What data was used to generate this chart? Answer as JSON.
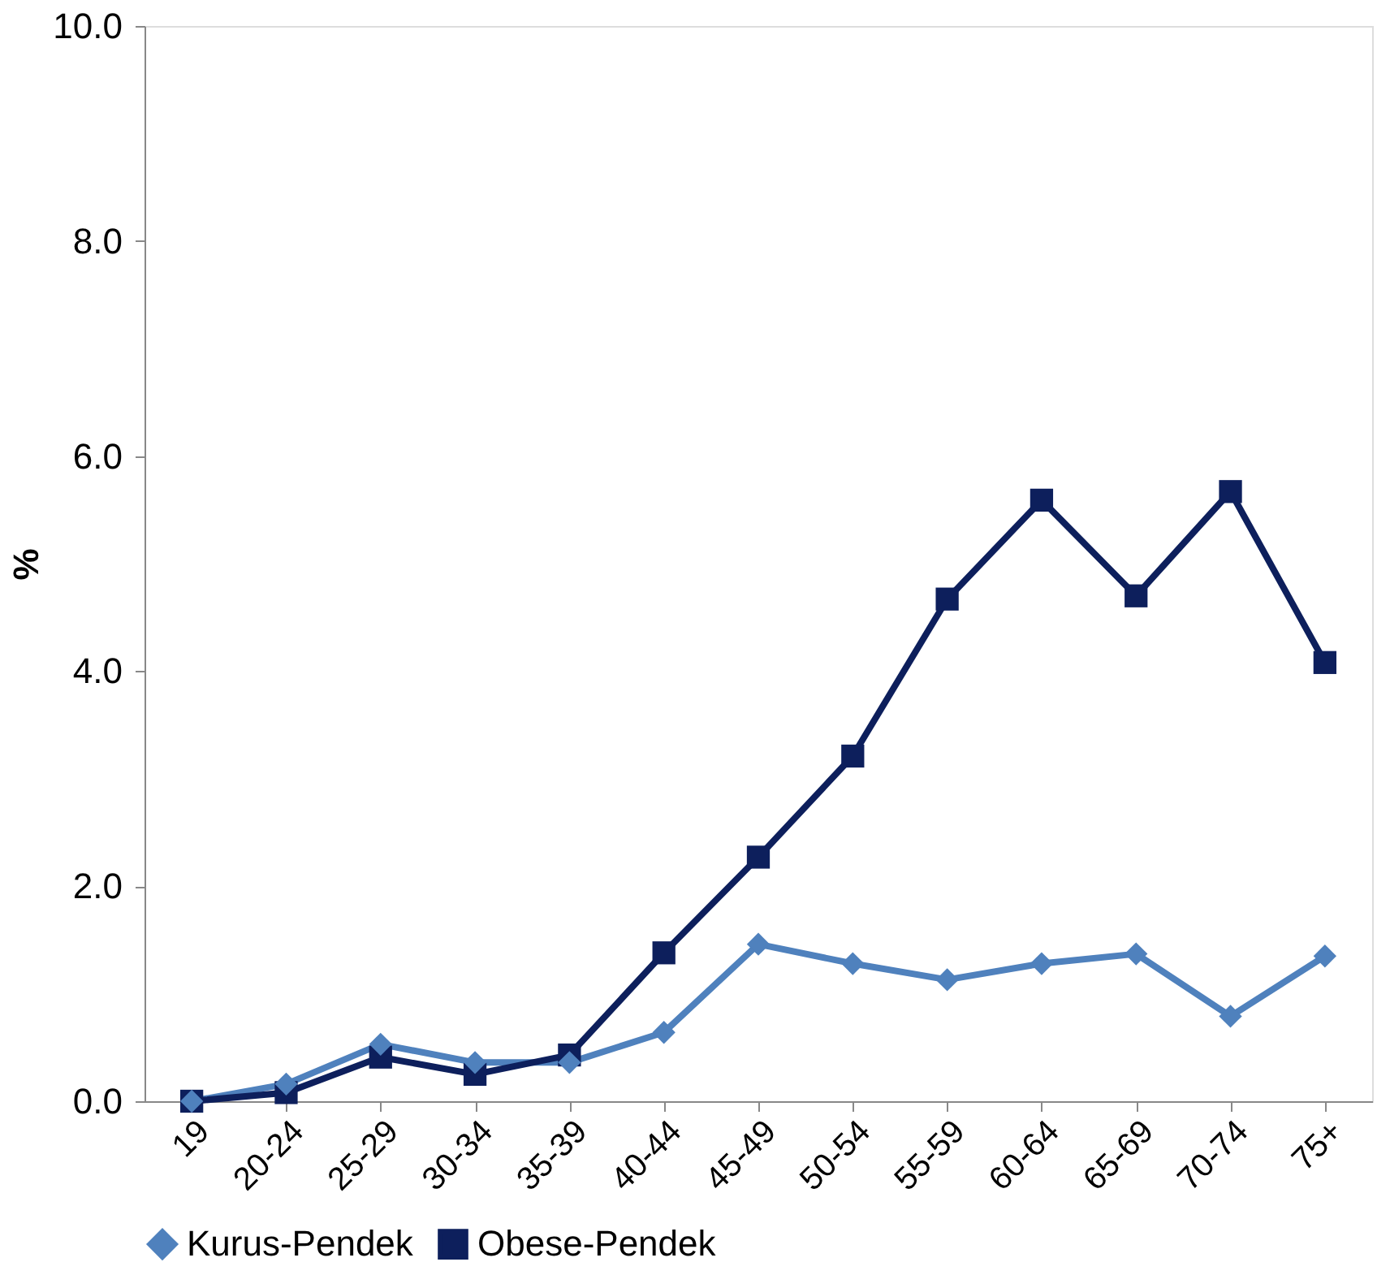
{
  "chart_data": {
    "type": "line",
    "ylabel": "%",
    "categories": [
      "19",
      "20-24",
      "25-29",
      "30-34",
      "35-39",
      "40-44",
      "45-49",
      "50-54",
      "55-59",
      "60-64",
      "65-69",
      "70-74",
      "75+"
    ],
    "series": [
      {
        "name": "Kurus-Pendek",
        "color": "#4f81bd",
        "marker": "diamond",
        "values": [
          0,
          0.16,
          0.53,
          0.36,
          0.36,
          0.64,
          1.46,
          1.28,
          1.13,
          1.28,
          1.37,
          0.79,
          1.35
        ]
      },
      {
        "name": "Obese-Pendek",
        "color": "#0d1f5c",
        "marker": "square",
        "values": [
          0,
          0.08,
          0.41,
          0.25,
          0.43,
          1.38,
          2.27,
          3.21,
          4.67,
          5.59,
          4.7,
          5.67,
          4.08
        ]
      }
    ],
    "ylim": [
      0,
      10
    ],
    "yticks": [
      {
        "value": 0,
        "label": "0.0"
      },
      {
        "value": 2,
        "label": "2.0"
      },
      {
        "value": 4,
        "label": "4.0"
      },
      {
        "value": 6,
        "label": "6.0"
      },
      {
        "value": 8,
        "label": "8.0"
      },
      {
        "value": 10,
        "label": "10.0"
      }
    ],
    "grid": false,
    "legend": "bottom"
  }
}
